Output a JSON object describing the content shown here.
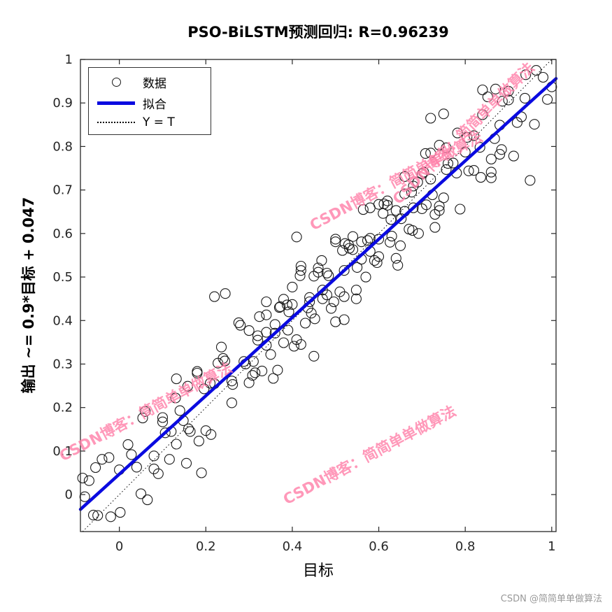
{
  "watermark": {
    "text": "CSDN博客：简简单单做算法",
    "color": "#ff7fa8"
  },
  "footer": {
    "text": "CSDN @简简单单做算法"
  },
  "chart_data": {
    "type": "scatter",
    "title": "PSO-BiLSTM预测回归: R=0.96239",
    "xlabel": "目标",
    "ylabel": "输出 ~= 0.9*目标 + 0.047",
    "r_value": 0.96239,
    "xlim": [
      -0.09,
      1.01
    ],
    "ylim": [
      -0.085,
      1.0
    ],
    "xticks": [
      0,
      0.2,
      0.4,
      0.6,
      0.8,
      1
    ],
    "xtick_labels": [
      "0",
      "0.2",
      "0.4",
      "0.6",
      "0.8",
      "1"
    ],
    "yticks": [
      0,
      0.1,
      0.2,
      0.3,
      0.4,
      0.5,
      0.6,
      0.7,
      0.8,
      0.9,
      1
    ],
    "ytick_labels": [
      "0",
      "0.1",
      "0.2",
      "0.3",
      "0.4",
      "0.5",
      "0.6",
      "0.7",
      "0.8",
      "0.9",
      "1"
    ],
    "legend_position": "top-left",
    "grid": false,
    "legend": [
      {
        "label": "数据",
        "marker": "circle"
      },
      {
        "label": "拟合",
        "marker": "line"
      },
      {
        "label": "Y = T",
        "marker": "dotted"
      }
    ],
    "fit_line": {
      "slope": 0.9,
      "intercept": 0.047,
      "color": "#0a0ae0"
    },
    "identity_line": {
      "label": "Y = T",
      "style": "dotted",
      "color": "#000000"
    },
    "marker": {
      "shape": "circle",
      "radius": 7,
      "color": "#1a1a1a"
    },
    "points": [
      [
        -0.08,
        -0.005
      ],
      [
        -0.06,
        -0.047
      ],
      [
        -0.04,
        0.081
      ],
      [
        -0.02,
        -0.051
      ],
      [
        0,
        0.057
      ],
      [
        0.02,
        0.115
      ],
      [
        0.04,
        0.063
      ],
      [
        0.06,
        0.191
      ],
      [
        0.08,
        0.059
      ],
      [
        0.1,
        0.167
      ],
      [
        0.12,
        0.145
      ],
      [
        0.14,
        0.193
      ],
      [
        0.16,
        0.151
      ],
      [
        0.18,
        0.279
      ],
      [
        0.2,
        0.147
      ],
      [
        0.22,
        0.255
      ],
      [
        0.24,
        0.313
      ],
      [
        0.26,
        0.261
      ],
      [
        0.28,
        0.389
      ],
      [
        0.3,
        0.257
      ],
      [
        0.32,
        0.365
      ],
      [
        0.34,
        0.343
      ],
      [
        0.36,
        0.391
      ],
      [
        0.38,
        0.349
      ],
      [
        0.4,
        0.477
      ],
      [
        0.42,
        0.345
      ],
      [
        0.44,
        0.453
      ],
      [
        0.46,
        0.511
      ],
      [
        0.48,
        0.459
      ],
      [
        0.5,
        0.587
      ],
      [
        0.52,
        0.455
      ],
      [
        0.54,
        0.563
      ],
      [
        0.56,
        0.541
      ],
      [
        0.58,
        0.589
      ],
      [
        0.6,
        0.547
      ],
      [
        0.62,
        0.675
      ],
      [
        0.64,
        0.543
      ],
      [
        0.66,
        0.651
      ],
      [
        0.68,
        0.709
      ],
      [
        0.7,
        0.657
      ],
      [
        0.72,
        0.785
      ],
      [
        0.74,
        0.653
      ],
      [
        0.76,
        0.761
      ],
      [
        0.78,
        0.739
      ],
      [
        0.8,
        0.787
      ],
      [
        0.82,
        0.745
      ],
      [
        0.84,
        0.873
      ],
      [
        0.86,
        0.741
      ],
      [
        0.88,
        0.849
      ],
      [
        0.9,
        0.907
      ],
      [
        0.92,
        0.855
      ],
      [
        0.94,
        0.965
      ],
      [
        0.96,
        0.851
      ],
      [
        0.98,
        0.959
      ],
      [
        1,
        0.937
      ],
      [
        -0.05,
        -0.048
      ],
      [
        -0.024,
        0.085
      ],
      [
        0.002,
        -0.041
      ],
      [
        0.028,
        0.092
      ],
      [
        0.054,
        0.176
      ],
      [
        0.08,
        0.089
      ],
      [
        0.106,
        0.142
      ],
      [
        0.132,
        0.116
      ],
      [
        0.158,
        0.249
      ],
      [
        0.184,
        0.123
      ],
      [
        0.21,
        0.256
      ],
      [
        0.236,
        0.339
      ],
      [
        0.262,
        0.253
      ],
      [
        0.288,
        0.306
      ],
      [
        0.314,
        0.28
      ],
      [
        0.34,
        0.413
      ],
      [
        0.366,
        0.286
      ],
      [
        0.392,
        0.42
      ],
      [
        0.418,
        0.503
      ],
      [
        0.444,
        0.417
      ],
      [
        0.47,
        0.47
      ],
      [
        0.496,
        0.443
      ],
      [
        0.522,
        0.577
      ],
      [
        0.548,
        0.45
      ],
      [
        0.574,
        0.584
      ],
      [
        0.6,
        0.667
      ],
      [
        0.626,
        0.58
      ],
      [
        0.652,
        0.634
      ],
      [
        0.678,
        0.607
      ],
      [
        0.704,
        0.741
      ],
      [
        0.73,
        0.614
      ],
      [
        0.756,
        0.747
      ],
      [
        0.782,
        0.831
      ],
      [
        0.808,
        0.744
      ],
      [
        0.834,
        0.798
      ],
      [
        0.86,
        0.771
      ],
      [
        0.886,
        0.904
      ],
      [
        0.912,
        0.778
      ],
      [
        0.938,
        0.911
      ],
      [
        0.964,
        0.975
      ],
      [
        0.99,
        0.908
      ],
      [
        0.1,
        0.177
      ],
      [
        0.116,
        0.081
      ],
      [
        0.132,
        0.266
      ],
      [
        0.148,
        0.17
      ],
      [
        0.164,
        0.145
      ],
      [
        0.18,
        0.283
      ],
      [
        0.196,
        0.243
      ],
      [
        0.212,
        0.138
      ],
      [
        0.228,
        0.302
      ],
      [
        0.244,
        0.307
      ],
      [
        0.26,
        0.211
      ],
      [
        0.276,
        0.395
      ],
      [
        0.292,
        0.3
      ],
      [
        0.308,
        0.274
      ],
      [
        0.324,
        0.409
      ],
      [
        0.34,
        0.373
      ],
      [
        0.356,
        0.267
      ],
      [
        0.372,
        0.432
      ],
      [
        0.388,
        0.436
      ],
      [
        0.404,
        0.341
      ],
      [
        0.42,
        0.525
      ],
      [
        0.436,
        0.429
      ],
      [
        0.452,
        0.404
      ],
      [
        0.468,
        0.538
      ],
      [
        0.484,
        0.503
      ],
      [
        0.5,
        0.397
      ],
      [
        0.516,
        0.561
      ],
      [
        0.532,
        0.566
      ],
      [
        0.548,
        0.47
      ],
      [
        0.564,
        0.655
      ],
      [
        0.58,
        0.559
      ],
      [
        0.596,
        0.533
      ],
      [
        0.612,
        0.668
      ],
      [
        0.628,
        0.632
      ],
      [
        0.644,
        0.527
      ],
      [
        0.66,
        0.691
      ],
      [
        0.676,
        0.695
      ],
      [
        0.692,
        0.6
      ],
      [
        0.708,
        0.784
      ],
      [
        0.724,
        0.689
      ],
      [
        0.74,
        0.663
      ],
      [
        0.756,
        0.797
      ],
      [
        0.772,
        0.762
      ],
      [
        0.788,
        0.656
      ],
      [
        0.804,
        0.821
      ],
      [
        0.82,
        0.825
      ],
      [
        0.836,
        0.729
      ],
      [
        0.852,
        0.914
      ],
      [
        0.868,
        0.818
      ],
      [
        0.884,
        0.793
      ],
      [
        0.9,
        0.927
      ],
      [
        0.3,
        0.377
      ],
      [
        0.31,
        0.306
      ],
      [
        0.32,
        0.355
      ],
      [
        0.33,
        0.284
      ],
      [
        0.34,
        0.443
      ],
      [
        0.35,
        0.322
      ],
      [
        0.36,
        0.371
      ],
      [
        0.37,
        0.43
      ],
      [
        0.38,
        0.449
      ],
      [
        0.39,
        0.378
      ],
      [
        0.4,
        0.437
      ],
      [
        0.41,
        0.356
      ],
      [
        0.42,
        0.515
      ],
      [
        0.43,
        0.394
      ],
      [
        0.44,
        0.443
      ],
      [
        0.45,
        0.502
      ],
      [
        0.46,
        0.521
      ],
      [
        0.47,
        0.45
      ],
      [
        0.48,
        0.509
      ],
      [
        0.49,
        0.428
      ],
      [
        0.5,
        0.581
      ],
      [
        0.51,
        0.466
      ],
      [
        0.52,
        0.515
      ],
      [
        0.53,
        0.574
      ],
      [
        0.54,
        0.593
      ],
      [
        0.55,
        0.522
      ],
      [
        0.56,
        0.581
      ],
      [
        0.57,
        0.5
      ],
      [
        0.58,
        0.659
      ],
      [
        0.59,
        0.538
      ],
      [
        0.6,
        0.587
      ],
      [
        0.61,
        0.646
      ],
      [
        0.62,
        0.665
      ],
      [
        0.63,
        0.594
      ],
      [
        0.64,
        0.653
      ],
      [
        0.65,
        0.572
      ],
      [
        0.66,
        0.731
      ],
      [
        0.67,
        0.61
      ],
      [
        0.68,
        0.659
      ],
      [
        0.69,
        0.718
      ],
      [
        0.7,
        0.737
      ],
      [
        0.71,
        0.666
      ],
      [
        0.72,
        0.725
      ],
      [
        0.73,
        0.644
      ],
      [
        0.74,
        0.803
      ],
      [
        0.75,
        0.682
      ],
      [
        -0.085,
        0.038
      ],
      [
        -0.07,
        0.032
      ],
      [
        -0.055,
        0.062
      ],
      [
        0.05,
        0.002
      ],
      [
        0.065,
        -0.012
      ],
      [
        0.09,
        0.048
      ],
      [
        0.13,
        0.222
      ],
      [
        0.155,
        0.072
      ],
      [
        0.19,
        0.05
      ],
      [
        0.22,
        0.455
      ],
      [
        0.245,
        0.462
      ],
      [
        0.41,
        0.592
      ],
      [
        0.45,
        0.318
      ],
      [
        0.52,
        0.402
      ],
      [
        0.72,
        0.865
      ],
      [
        0.75,
        0.875
      ],
      [
        0.84,
        0.93
      ],
      [
        0.87,
        0.932
      ],
      [
        0.86,
        0.728
      ],
      [
        0.88,
        0.782
      ],
      [
        0.93,
        0.868
      ],
      [
        0.95,
        0.722
      ]
    ]
  }
}
